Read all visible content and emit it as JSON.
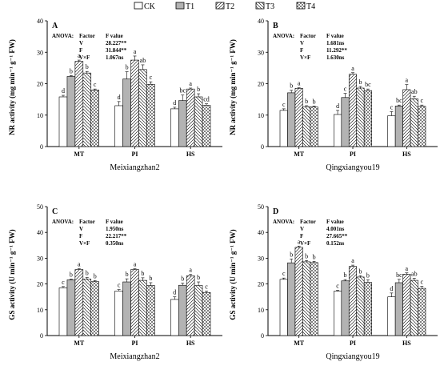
{
  "legend": {
    "entries": [
      {
        "label": "CK",
        "pattern": "white"
      },
      {
        "label": "T1",
        "pattern": "gray"
      },
      {
        "label": "T2",
        "pattern": "fwd"
      },
      {
        "label": "T3",
        "pattern": "back"
      },
      {
        "label": "T4",
        "pattern": "cross"
      }
    ]
  },
  "colors": {
    "axis": "#000000",
    "t1_fill": "#b3b3b3",
    "bar_stroke": "#000000",
    "background": "#ffffff"
  },
  "chart_data": [
    {
      "type": "bar",
      "panel": "A",
      "ylabel": "NR activity (mg min⁻¹ g⁻¹ FW)",
      "xlabel": "Meixiangzhan2",
      "categories": [
        "MT",
        "PI",
        "HS"
      ],
      "ylim": [
        0,
        40
      ],
      "yticks": [
        0,
        10,
        20,
        30,
        40
      ],
      "grid": false,
      "anova": {
        "title": "ANOVA:",
        "factor_header": "Factor",
        "value_header": "F value",
        "rows": [
          {
            "factor": "V",
            "value": "28.227**"
          },
          {
            "factor": "F",
            "value": "31.844**"
          },
          {
            "factor": "V×F",
            "value": "1.067ns"
          }
        ]
      },
      "series": [
        {
          "name": "CK",
          "values": [
            15.8,
            13.0,
            12.0
          ],
          "errors": [
            0.5,
            1.3,
            0.5
          ],
          "letters": [
            "d",
            "d",
            "d"
          ]
        },
        {
          "name": "T1",
          "values": [
            22.3,
            21.5,
            14.6
          ],
          "errors": [
            0.3,
            2.3,
            1.8
          ],
          "letters": [
            "b",
            "b",
            "bc"
          ]
        },
        {
          "name": "T2",
          "values": [
            27.1,
            27.5,
            18.3
          ],
          "errors": [
            0.4,
            1.3,
            0.3
          ],
          "letters": [
            "a",
            "a",
            "a"
          ]
        },
        {
          "name": "T3",
          "values": [
            23.4,
            24.5,
            15.8
          ],
          "errors": [
            0.5,
            1.5,
            1.0
          ],
          "letters": [
            "b",
            "ab",
            "b"
          ]
        },
        {
          "name": "T4",
          "values": [
            18.0,
            19.8,
            13.1
          ],
          "errors": [
            0.3,
            0.8,
            0.5
          ],
          "letters": [
            "c",
            "c",
            "cd"
          ]
        }
      ]
    },
    {
      "type": "bar",
      "panel": "B",
      "ylabel": "NR activity (mg min⁻¹ g⁻¹ FW)",
      "xlabel": "Qingxiangyou19",
      "categories": [
        "MT",
        "PI",
        "HS"
      ],
      "ylim": [
        0,
        40
      ],
      "yticks": [
        0,
        10,
        20,
        30,
        40
      ],
      "grid": false,
      "anova": {
        "title": "ANOVA:",
        "factor_header": "Factor",
        "value_header": "F value",
        "rows": [
          {
            "factor": "V",
            "value": "1.681ns"
          },
          {
            "factor": "F",
            "value": "11.292**"
          },
          {
            "factor": "V×F",
            "value": "1.630ns"
          }
        ]
      },
      "series": [
        {
          "name": "CK",
          "values": [
            11.5,
            10.2,
            9.8
          ],
          "errors": [
            0.5,
            1.3,
            1.3
          ],
          "letters": [
            "c",
            "d",
            "c"
          ]
        },
        {
          "name": "T1",
          "values": [
            17.1,
            15.6,
            12.9
          ],
          "errors": [
            0.8,
            1.3,
            0.3
          ],
          "letters": [
            "b",
            "c",
            "bc"
          ]
        },
        {
          "name": "T2",
          "values": [
            18.5,
            23.0,
            18.1
          ],
          "errors": [
            0.2,
            0.5,
            1.6
          ],
          "letters": [
            "a",
            "a",
            "a"
          ]
        },
        {
          "name": "T3",
          "values": [
            12.7,
            18.6,
            15.2
          ],
          "errors": [
            0.3,
            0.5,
            0.8
          ],
          "letters": [
            "b",
            "b",
            "ab"
          ]
        },
        {
          "name": "T4",
          "values": [
            12.6,
            17.8,
            12.8
          ],
          "errors": [
            0.3,
            0.5,
            0.4
          ],
          "letters": [
            "b",
            "bc",
            "c"
          ]
        }
      ]
    },
    {
      "type": "bar",
      "panel": "C",
      "ylabel": "GS activity (U min⁻¹ g⁻¹ FW)",
      "xlabel": "Meixiangzhan2",
      "categories": [
        "MT",
        "PI",
        "HS"
      ],
      "ylim": [
        0,
        50
      ],
      "yticks": [
        0,
        10,
        20,
        30,
        40,
        50
      ],
      "grid": false,
      "anova": {
        "title": "ANOVA:",
        "factor_header": "Factor",
        "value_header": "F value",
        "rows": [
          {
            "factor": "V",
            "value": "1.950ns"
          },
          {
            "factor": "F",
            "value": "22.217**"
          },
          {
            "factor": "V×F",
            "value": "0.350ns"
          }
        ]
      },
      "series": [
        {
          "name": "CK",
          "values": [
            18.5,
            17.3,
            14.0
          ],
          "errors": [
            0.5,
            0.5,
            1.0
          ],
          "letters": [
            "c",
            "c",
            "d"
          ]
        },
        {
          "name": "T1",
          "values": [
            21.6,
            20.8,
            19.5
          ],
          "errors": [
            0.3,
            1.2,
            0.8
          ],
          "letters": [
            "b",
            "b",
            "b"
          ]
        },
        {
          "name": "T2",
          "values": [
            25.6,
            25.6,
            23.2
          ],
          "errors": [
            0.3,
            0.3,
            0.5
          ],
          "letters": [
            "a",
            "a",
            "a"
          ]
        },
        {
          "name": "T3",
          "values": [
            21.9,
            21.4,
            19.4
          ],
          "errors": [
            0.6,
            1.0,
            1.4
          ],
          "letters": [
            "b",
            "b",
            "b"
          ]
        },
        {
          "name": "T4",
          "values": [
            20.9,
            19.4,
            16.7
          ],
          "errors": [
            0.4,
            1.1,
            0.5
          ],
          "letters": [
            "b",
            "b",
            "c"
          ]
        }
      ]
    },
    {
      "type": "bar",
      "panel": "D",
      "ylabel": "GS activity (U min⁻¹ g⁻¹ FW)",
      "xlabel": "Qingxiangyou19",
      "categories": [
        "MT",
        "PI",
        "HS"
      ],
      "ylim": [
        0,
        50
      ],
      "yticks": [
        0,
        10,
        20,
        30,
        40,
        50
      ],
      "grid": false,
      "anova": {
        "title": "ANOVA:",
        "factor_header": "Factor",
        "value_header": "F value",
        "rows": [
          {
            "factor": "V",
            "value": "4.001ns"
          },
          {
            "factor": "F",
            "value": "27.665**"
          },
          {
            "factor": "V×F",
            "value": "0.152ns"
          }
        ]
      },
      "series": [
        {
          "name": "CK",
          "values": [
            21.8,
            17.2,
            15.0
          ],
          "errors": [
            0.5,
            0.3,
            1.5
          ],
          "letters": [
            "c",
            "c",
            "d"
          ]
        },
        {
          "name": "T1",
          "values": [
            28.2,
            21.2,
            20.5
          ],
          "errors": [
            1.5,
            0.5,
            1.3
          ],
          "letters": [
            "b",
            "b",
            "bc"
          ]
        },
        {
          "name": "T2",
          "values": [
            34.2,
            26.8,
            23.8
          ],
          "errors": [
            0.5,
            0.5,
            0.5
          ],
          "letters": [
            "a",
            "a",
            "a"
          ]
        },
        {
          "name": "T3",
          "values": [
            28.6,
            22.7,
            21.4
          ],
          "errors": [
            0.5,
            0.5,
            0.8
          ],
          "letters": [
            "b",
            "b",
            "ab"
          ]
        },
        {
          "name": "T4",
          "values": [
            28.3,
            20.6,
            18.3
          ],
          "errors": [
            0.5,
            1.0,
            0.8
          ],
          "letters": [
            "b",
            "b",
            "c"
          ]
        }
      ]
    }
  ]
}
